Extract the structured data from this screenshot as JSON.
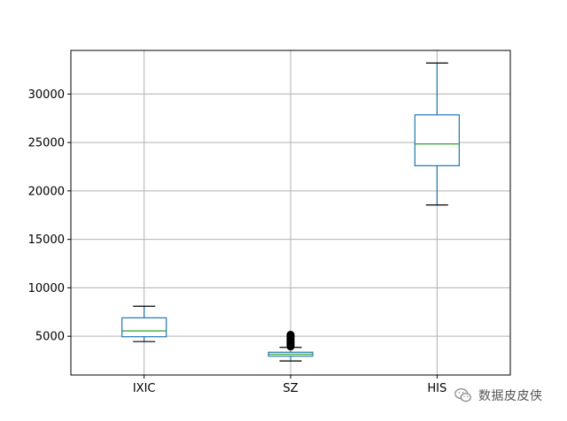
{
  "chart_data": {
    "type": "boxplot",
    "title": "",
    "xlabel": "",
    "ylabel": "",
    "categories": [
      "IXIC",
      "SZ",
      "HIS"
    ],
    "ylim": [
      1000,
      34500
    ],
    "yticks": [
      5000,
      10000,
      15000,
      20000,
      25000,
      30000
    ],
    "grid": true,
    "box_color": "#1f77b4",
    "median_color": "#2ca02c",
    "boxes": [
      {
        "name": "IXIC",
        "whisker_low": 4450,
        "q1": 4950,
        "median": 5550,
        "q3": 6900,
        "whisker_high": 8100,
        "outliers": []
      },
      {
        "name": "SZ",
        "whisker_low": 2450,
        "q1": 2950,
        "median": 3150,
        "q3": 3350,
        "whisker_high": 3850,
        "outliers": [
          3950,
          4050,
          4150,
          4250,
          4350,
          4450,
          4550,
          4650,
          4750,
          4850,
          4950,
          5050,
          5150
        ]
      },
      {
        "name": "HIS",
        "whisker_low": 18550,
        "q1": 22600,
        "median": 24850,
        "q3": 27850,
        "whisker_high": 33200,
        "outliers": []
      }
    ]
  },
  "watermark": {
    "text": "数据皮皮侠",
    "icon": "wechat-icon"
  }
}
